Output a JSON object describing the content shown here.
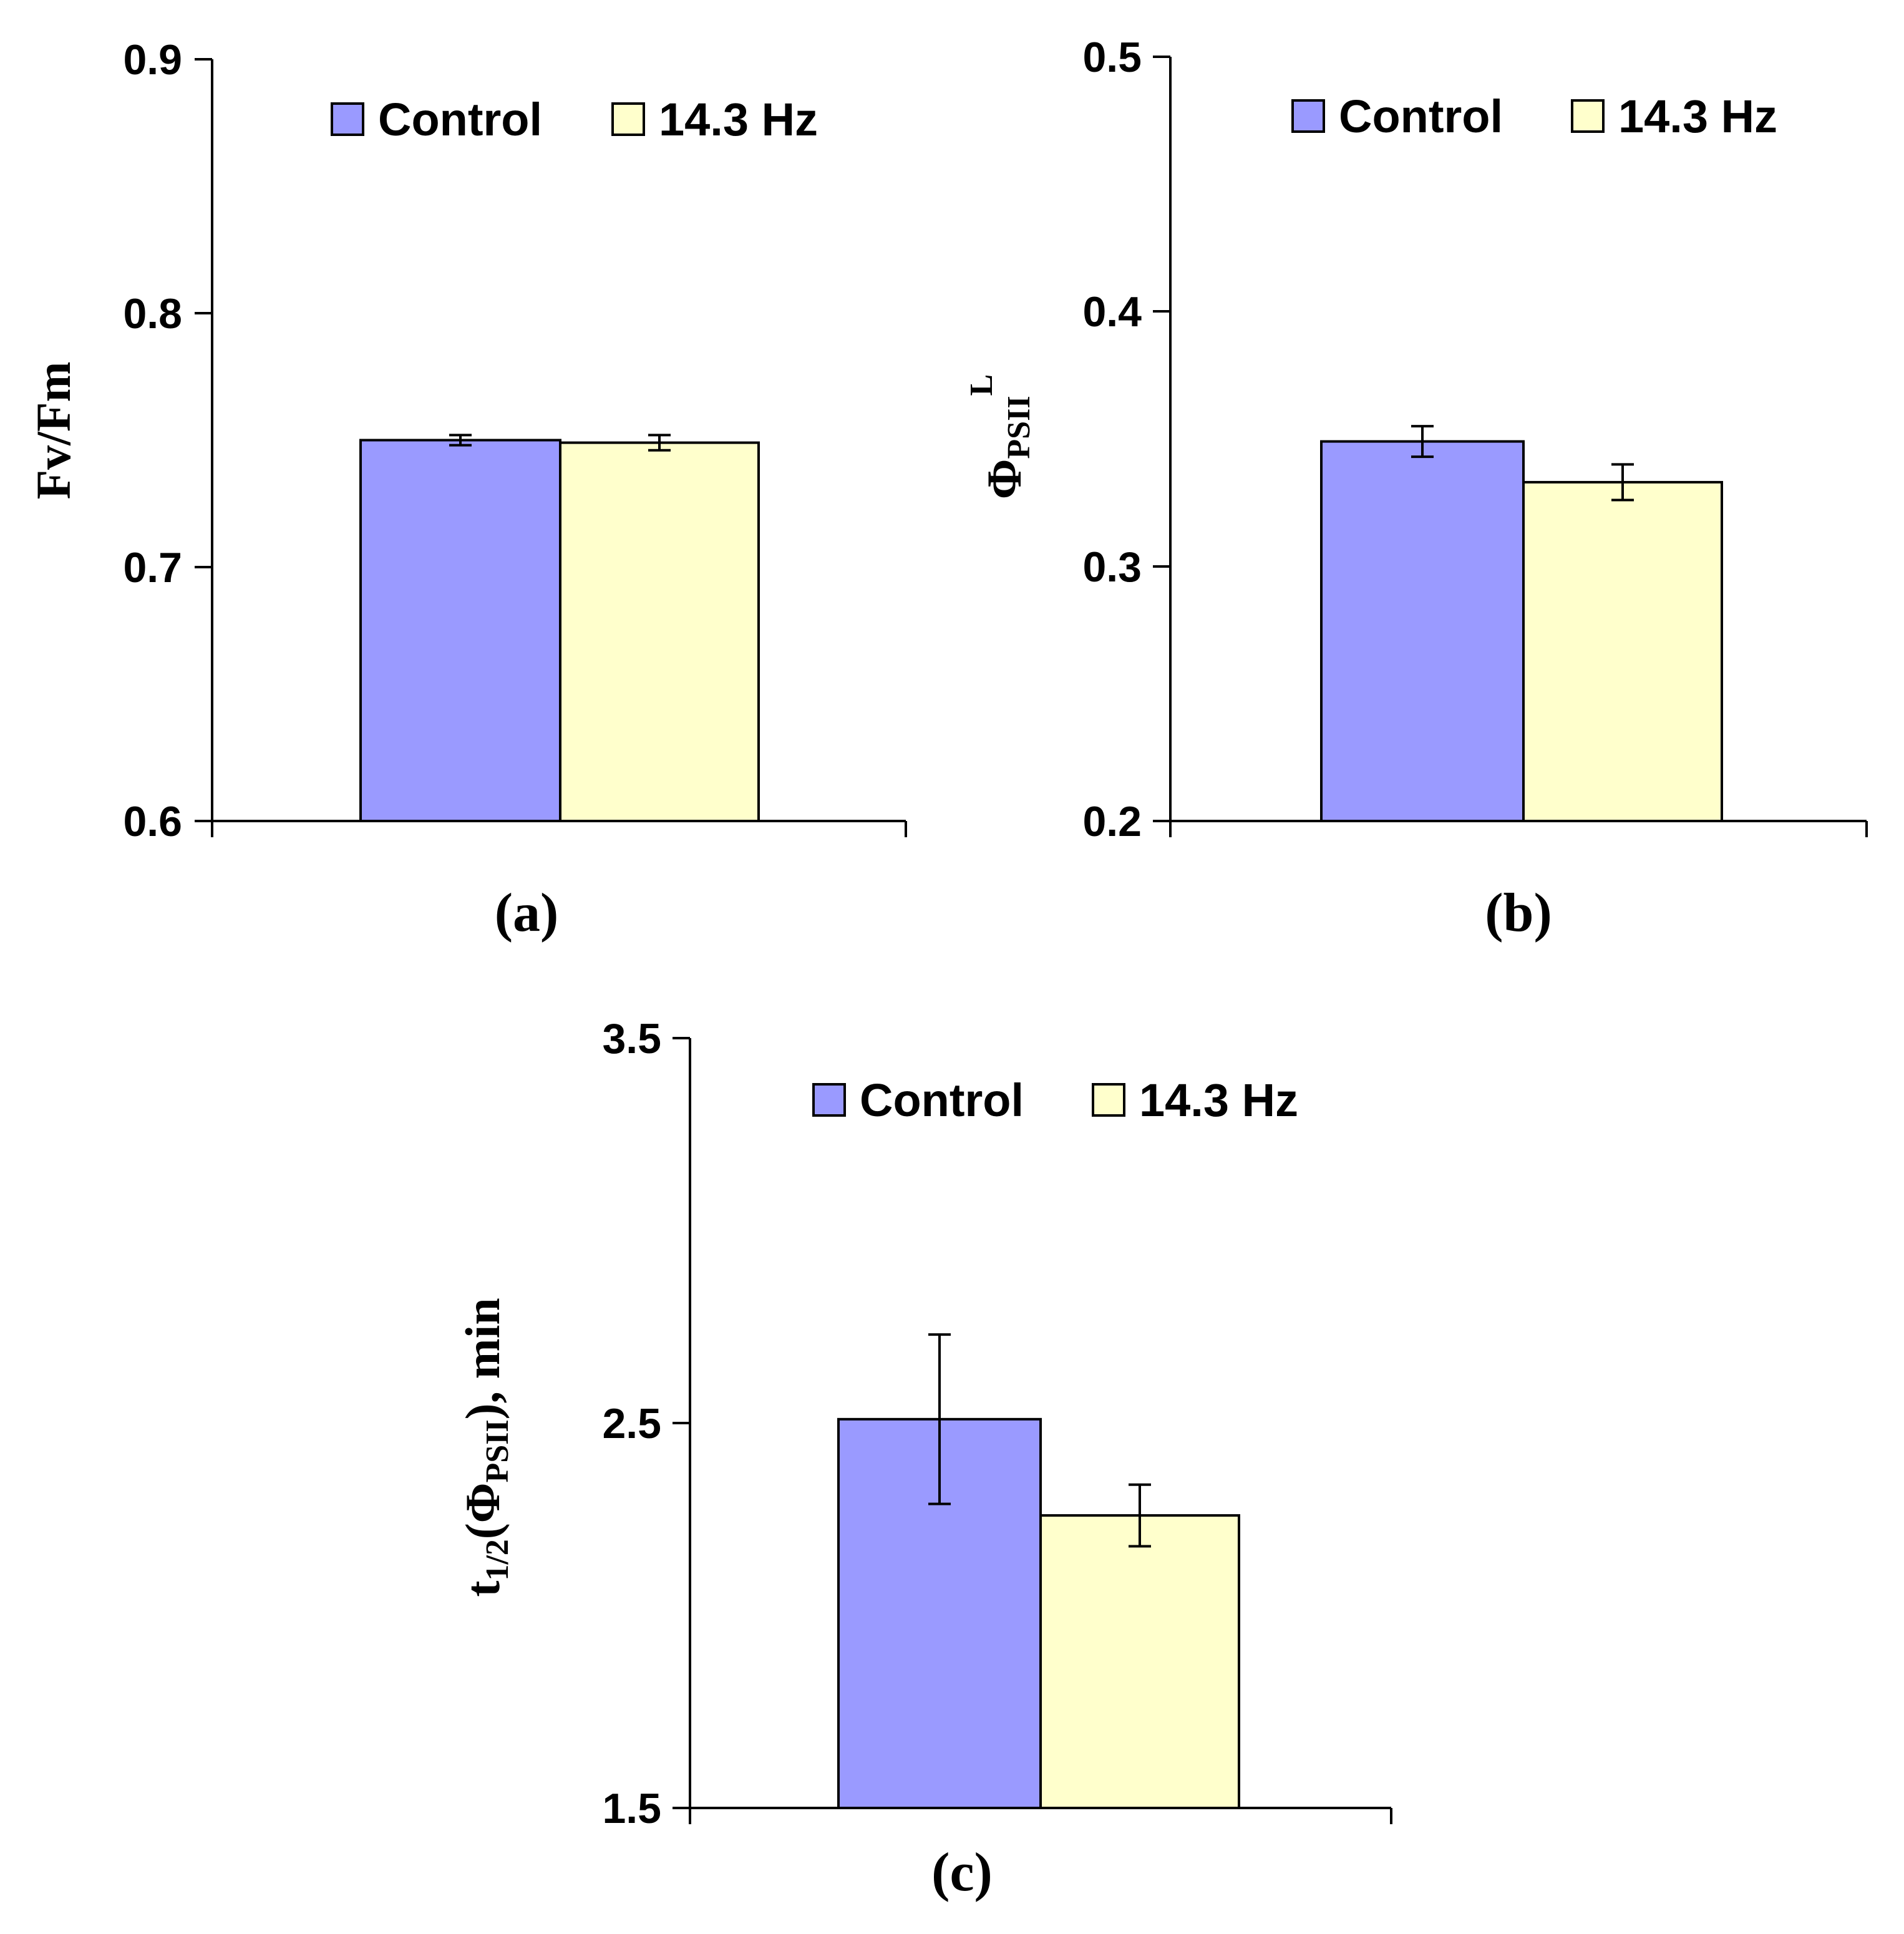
{
  "colors": {
    "control": "#9a9aff",
    "treated": "#ffffcc",
    "stroke": "#000000"
  },
  "chart_data": [
    {
      "type": "bar",
      "panel": "(a)",
      "ylabel": "Fv/Fm",
      "ylim": [
        0.6,
        0.9
      ],
      "yticks": [
        "0.6",
        "0.7",
        "0.8",
        "0.9"
      ],
      "legend": [
        "Control",
        "14.3 Hz"
      ],
      "series": [
        {
          "name": "Control",
          "value": 0.75,
          "error": 0.002
        },
        {
          "name": "14.3 Hz",
          "value": 0.749,
          "error": 0.003
        }
      ]
    },
    {
      "type": "bar",
      "panel": "(b)",
      "ylabel": {
        "main": "Φ",
        "sub": "PSII",
        "sup": "L"
      },
      "ylim": [
        0.2,
        0.5
      ],
      "yticks": [
        "0.2",
        "0.3",
        "0.4",
        "0.5"
      ],
      "legend": [
        "Control",
        "14.3 Hz"
      ],
      "series": [
        {
          "name": "Control",
          "value": 0.349,
          "error": 0.006
        },
        {
          "name": "14.3 Hz",
          "value": 0.333,
          "error": 0.007
        }
      ]
    },
    {
      "type": "bar",
      "panel": "(c)",
      "ylabel": {
        "pre": "t",
        "sub1": "1/2",
        "mid": "(Φ",
        "sub2": "PSII",
        "post": "), min"
      },
      "ylim": [
        1.5,
        3.5
      ],
      "yticks": [
        "1.5",
        "2.5",
        "3.5"
      ],
      "legend": [
        "Control",
        "14.3 Hz"
      ],
      "series": [
        {
          "name": "Control",
          "value": 2.51,
          "error": 0.22
        },
        {
          "name": "14.3 Hz",
          "value": 2.26,
          "error": 0.08
        }
      ]
    }
  ]
}
